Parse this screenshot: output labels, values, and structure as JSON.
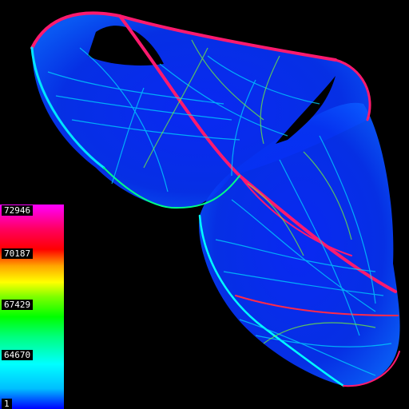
{
  "colorbar": {
    "labels": [
      "72946",
      "70187",
      "67429",
      "64670",
      "1"
    ],
    "colors": [
      "#0000ff",
      "#00bfff",
      "#00ffff",
      "#00ff80",
      "#00ff00",
      "#80ff00",
      "#ffff00",
      "#ffa500",
      "#ff0000",
      "#ff0060",
      "#ff00ff"
    ]
  },
  "image": {
    "background": "#000000",
    "subject": "density-plot-of-strange-attractor"
  }
}
